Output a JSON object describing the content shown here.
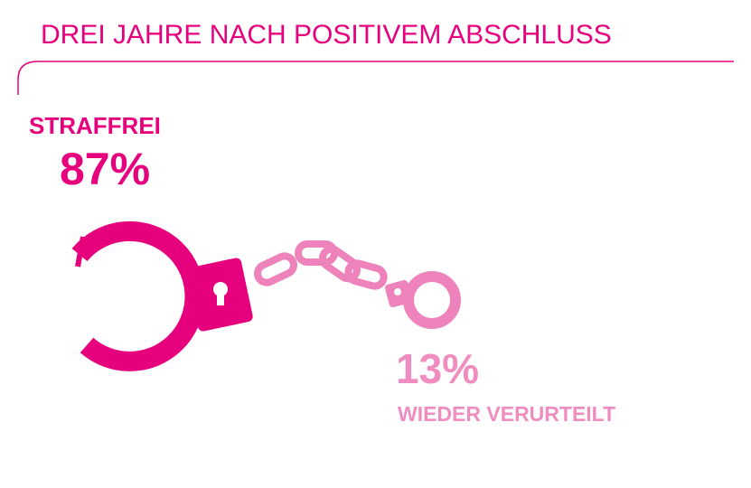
{
  "header": {
    "title": "DREI JAHRE NACH POSITIVEM ABSCHLUSS"
  },
  "items": [
    {
      "label": "STRAFFREI",
      "value": "87%"
    },
    {
      "value": "13%",
      "label": "WIEDER VERURTEILT"
    }
  ]
}
